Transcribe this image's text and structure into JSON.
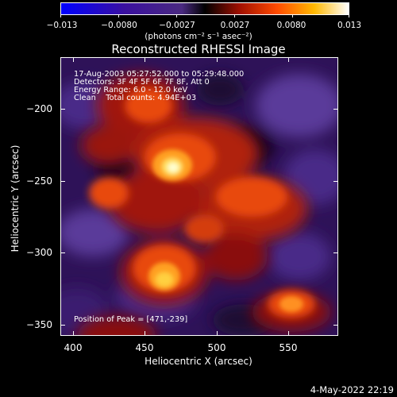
{
  "colorbar": {
    "ticks": [
      "−0.013",
      "−0.0080",
      "−0.0027",
      "0.0027",
      "0.0080",
      "0.013"
    ],
    "units": "(photons cm⁻² s⁻¹ asec⁻²)",
    "colors": [
      "#0000ff",
      "#2a0060",
      "#5a2a9a",
      "#000000",
      "#a01000",
      "#ff5000",
      "#ffc000",
      "#ffffff"
    ]
  },
  "title": "Reconstructed RHESSI Image",
  "annotation": {
    "line1": "17-Aug-2003 05:27:52.000 to 05:29:48.000",
    "line2": "Detectors: 3F 4F 5F 6F 7F 8F, Att 0",
    "line3": "Energy Range: 6.0 - 12.0 keV",
    "line4": "Clean    Total counts: 4.94E+03",
    "peak": "Position of Peak = [471,-239]"
  },
  "axes": {
    "xlabel": "Heliocentric X (arcsec)",
    "ylabel": "Heliocentric Y (arcsec)",
    "xticks": [
      "400",
      "450",
      "500",
      "550"
    ],
    "yticks": [
      "−200",
      "−250",
      "−300",
      "−350"
    ]
  },
  "footer": {
    "date": "4-May-2022 22:19"
  }
}
